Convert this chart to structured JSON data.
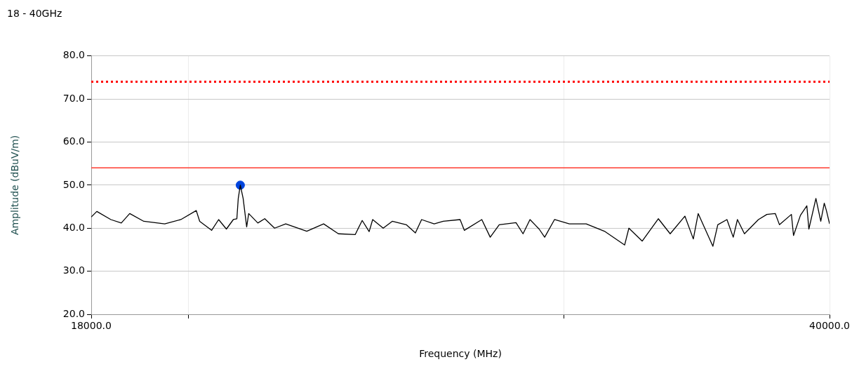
{
  "chart_data": {
    "type": "line",
    "title": "18 - 40GHz",
    "xlabel": "Frequency (MHz)",
    "ylabel": "Amplitude (dBuV/m)",
    "log": "x",
    "grid": true,
    "legend": false,
    "xlim": [
      18000,
      40000
    ],
    "xticks": [
      {
        "value": 18000,
        "label": "18000.0"
      },
      {
        "value": 20000,
        "label": null
      },
      {
        "value": 30000,
        "label": null
      },
      {
        "value": 40000,
        "label": "40000.0"
      }
    ],
    "ylim": [
      20,
      80
    ],
    "yticks": [
      {
        "value": 20,
        "label": "20.0"
      },
      {
        "value": 30,
        "label": "30.0"
      },
      {
        "value": 40,
        "label": "40.0"
      },
      {
        "value": 50,
        "label": "50.0"
      },
      {
        "value": 60,
        "label": "60.0"
      },
      {
        "value": 70,
        "label": "70.0"
      },
      {
        "value": 80,
        "label": "80.0"
      }
    ],
    "ref_lines": [
      {
        "axis": "y",
        "value": 74,
        "color": "#ff0000",
        "line_style": "dotted"
      },
      {
        "axis": "y",
        "value": 54,
        "color": "#ff3b2f",
        "line_style": "solid"
      }
    ],
    "series": [
      {
        "type": "line",
        "color": "#000000",
        "marker": "none",
        "line_style": "solid",
        "x": [
          18000,
          18109,
          18386,
          18595,
          18765,
          19052,
          19489,
          19832,
          20165,
          20240,
          20503,
          20659,
          20833,
          20990,
          21070,
          21102,
          21149,
          21214,
          21295,
          21342,
          21554,
          21715,
          21948,
          22214,
          22725,
          23143,
          23516,
          23946,
          24129,
          24311,
          24404,
          24683,
          24926,
          25307,
          25558,
          25730,
          26082,
          26342,
          26824,
          26947,
          27461,
          27712,
          27983,
          28496,
          28713,
          28930,
          29217,
          29393,
          29707,
          30188,
          30742,
          31354,
          32049,
          32196,
          32664,
          33237,
          33666,
          34206,
          34519,
          34702,
          35257,
          35445,
          35798,
          36042,
          36206,
          36482,
          37038,
          37378,
          37721,
          37890,
          38382,
          38470,
          38760,
          39028,
          39114,
          39413,
          39621,
          39771,
          39863,
          40000
        ],
        "values": [
          42.6,
          43.9,
          42.0,
          41.2,
          43.4,
          41.6,
          41.0,
          42.0,
          44.1,
          41.6,
          39.5,
          42.0,
          39.8,
          42.0,
          42.2,
          46.9,
          50.0,
          46.9,
          40.3,
          43.4,
          41.2,
          42.2,
          40.0,
          41.0,
          39.3,
          41.0,
          38.7,
          38.5,
          41.8,
          39.2,
          42.0,
          40.0,
          41.6,
          40.8,
          38.9,
          42.0,
          41.0,
          41.6,
          42.0,
          39.5,
          42.0,
          37.9,
          40.8,
          41.3,
          38.7,
          42.0,
          39.8,
          37.9,
          42.0,
          41.0,
          41.0,
          39.3,
          36.1,
          40.0,
          37.0,
          42.2,
          38.7,
          42.8,
          37.5,
          43.4,
          35.8,
          40.8,
          42.0,
          37.9,
          42.0,
          38.7,
          42.0,
          43.2,
          43.4,
          40.8,
          43.2,
          38.3,
          43.0,
          45.2,
          39.8,
          46.9,
          41.6,
          45.8,
          44.1,
          41.0
        ]
      },
      {
        "type": "scatter",
        "color": "#0044dd",
        "marker": "circle",
        "x": [
          21149
        ],
        "values": [
          50.0
        ]
      }
    ]
  }
}
